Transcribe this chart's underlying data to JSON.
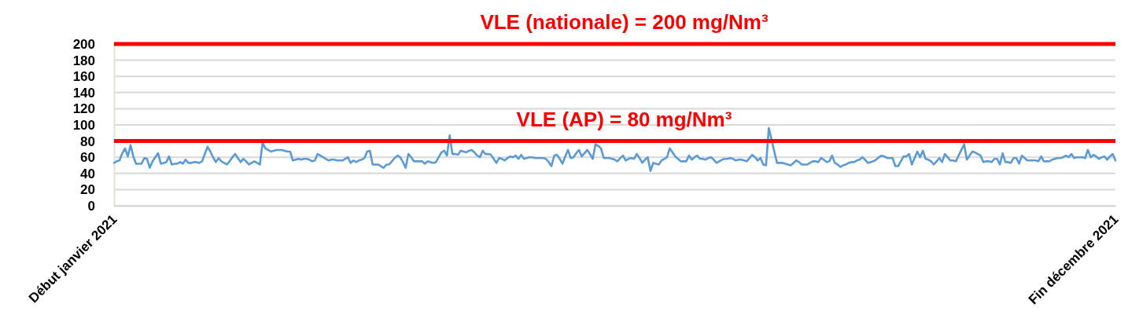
{
  "chart_data": {
    "type": "line",
    "categories": [
      "Début janvier 2021",
      null,
      null,
      null,
      null,
      null,
      null,
      null,
      null,
      null,
      null,
      null,
      null,
      null,
      null,
      null,
      null,
      null,
      null,
      null,
      null,
      null,
      null,
      null,
      null,
      null,
      null,
      null,
      null,
      null,
      null,
      null,
      null,
      null,
      null,
      null,
      null,
      null,
      null,
      null,
      null,
      null,
      null,
      null,
      null,
      null,
      null,
      null,
      null,
      null,
      null,
      null,
      null,
      null,
      null,
      null,
      null,
      null,
      null,
      null,
      null,
      null,
      null,
      null,
      null,
      null,
      null,
      null,
      null,
      null,
      null,
      null,
      null,
      null,
      null,
      null,
      null,
      null,
      null,
      null,
      null,
      null,
      null,
      null,
      null,
      null,
      null,
      null,
      null,
      null,
      null,
      null,
      null,
      null,
      null,
      null,
      null,
      null,
      null,
      null,
      null,
      null,
      null,
      null,
      null,
      null,
      null,
      null,
      null,
      null,
      null,
      null,
      null,
      null,
      null,
      null,
      null,
      null,
      null,
      null,
      null,
      null,
      null,
      null,
      null,
      null,
      null,
      null,
      null,
      null,
      null,
      null,
      null,
      null,
      null,
      null,
      null,
      null,
      null,
      null,
      null,
      null,
      null,
      null,
      null,
      null,
      null,
      null,
      null,
      null,
      null,
      null,
      null,
      null,
      null,
      null,
      null,
      null,
      null,
      null,
      null,
      null,
      null,
      null,
      null,
      null,
      null,
      null,
      null,
      null,
      null,
      null,
      null,
      null,
      null,
      null,
      null,
      null,
      null,
      null,
      null,
      null,
      null,
      null,
      null,
      null,
      null,
      null,
      null,
      null,
      null,
      null,
      null,
      null,
      null,
      null,
      null,
      null,
      null,
      null,
      null,
      null,
      null,
      null,
      null,
      null,
      null,
      null,
      null,
      null,
      null,
      null,
      null,
      null,
      null,
      null,
      null,
      null,
      null,
      null,
      null,
      null,
      null,
      null,
      null,
      null,
      null,
      null,
      null,
      null,
      null,
      null,
      null,
      null,
      null,
      null,
      null,
      null,
      null,
      null,
      null,
      null,
      null,
      null,
      null,
      null,
      null,
      null,
      null,
      null,
      null,
      null,
      null,
      null,
      null,
      null,
      null,
      null,
      null,
      null,
      null,
      null,
      null,
      null,
      null,
      null,
      null,
      null,
      null,
      null,
      null,
      null,
      null,
      null,
      null,
      null,
      null,
      null,
      null,
      null,
      null,
      null,
      null,
      null,
      null,
      null,
      null,
      null,
      null,
      null,
      null,
      null,
      null,
      null,
      null,
      null,
      null,
      null,
      null,
      null,
      null,
      null,
      null,
      null,
      null,
      null,
      null,
      null,
      null,
      null,
      null,
      null,
      null,
      null,
      null,
      null,
      null,
      null,
      null,
      null,
      null,
      null,
      null,
      null,
      null,
      null,
      null,
      null,
      null,
      null,
      null,
      null,
      null,
      null,
      null,
      null,
      null,
      null,
      null,
      null,
      null,
      null,
      null,
      null,
      null,
      null,
      null,
      null,
      null,
      null,
      null,
      null,
      null,
      null,
      null,
      null,
      null,
      null,
      null,
      null,
      null,
      null,
      null,
      null,
      "Fin décembre 2021"
    ],
    "series": [
      {
        "color": "#5b9bd5",
        "values": [
          53,
          55,
          56,
          65,
          71,
          61,
          75,
          61,
          52,
          52,
          52,
          59,
          58,
          47,
          55,
          60,
          65,
          52,
          53,
          54,
          61,
          51,
          52,
          52,
          54,
          52,
          57,
          53,
          53,
          54,
          54,
          53,
          55,
          64,
          73,
          67,
          60,
          54,
          59,
          55,
          53,
          51,
          55,
          60,
          64,
          59,
          54,
          58,
          55,
          51,
          53,
          55,
          53,
          51,
          78,
          71,
          69,
          67,
          68,
          69,
          69,
          69,
          68,
          67,
          67,
          56,
          57,
          58,
          57,
          58,
          58,
          57,
          55,
          56,
          64,
          62,
          60,
          58,
          56,
          57,
          57,
          56,
          56,
          56,
          58,
          60,
          53,
          56,
          54,
          56,
          57,
          59,
          67,
          68,
          51,
          51,
          51,
          49,
          47,
          51,
          51,
          55,
          59,
          62,
          60,
          54,
          47,
          64,
          60,
          55,
          55,
          55,
          55,
          52,
          55,
          54,
          53,
          54,
          60,
          66,
          68,
          62,
          87,
          64,
          64,
          63,
          68,
          67,
          66,
          68,
          69,
          66,
          62,
          60,
          68,
          64,
          64,
          63,
          58,
          53,
          59,
          58,
          56,
          59,
          61,
          60,
          62,
          58,
          63,
          58,
          59,
          60,
          60,
          59,
          59,
          59,
          59,
          58,
          54,
          49,
          62,
          63,
          58,
          52,
          61,
          69,
          59,
          60,
          65,
          69,
          61,
          65,
          69,
          64,
          58,
          76,
          74,
          71,
          59,
          59,
          59,
          58,
          57,
          55,
          59,
          62,
          56,
          58,
          59,
          58,
          64,
          59,
          53,
          57,
          60,
          43,
          53,
          52,
          51,
          56,
          58,
          60,
          71,
          66,
          61,
          58,
          55,
          55,
          55,
          62,
          57,
          60,
          62,
          58,
          58,
          57,
          59,
          60,
          57,
          53,
          55,
          57,
          58,
          58,
          59,
          58,
          56,
          57,
          57,
          56,
          55,
          59,
          63,
          60,
          56,
          59,
          51,
          50,
          96,
          82,
          67,
          53,
          53,
          53,
          52,
          51,
          50,
          53,
          56,
          54,
          51,
          51,
          51,
          53,
          55,
          55,
          54,
          59,
          57,
          54,
          55,
          62,
          53,
          51,
          48,
          50,
          51,
          53,
          54,
          54,
          56,
          57,
          60,
          57,
          53,
          54,
          55,
          57,
          60,
          62,
          61,
          59,
          59,
          59,
          49,
          49,
          55,
          61,
          61,
          64,
          51,
          59,
          67,
          60,
          68,
          58,
          57,
          55,
          51,
          55,
          59,
          54,
          64,
          60,
          56,
          56,
          55,
          62,
          69,
          76,
          57,
          62,
          67,
          66,
          64,
          62,
          54,
          55,
          55,
          54,
          58,
          58,
          51,
          65,
          54,
          54,
          53,
          59,
          59,
          52,
          62,
          59,
          56,
          56,
          56,
          56,
          55,
          61,
          55,
          55,
          55,
          57,
          58,
          59,
          59,
          60,
          62,
          60,
          64,
          59,
          60,
          60,
          60,
          59,
          69,
          60,
          63,
          61,
          58,
          60,
          61,
          57,
          61,
          64,
          56
        ]
      }
    ],
    "ylim": [
      0,
      200
    ],
    "yticks": [
      0,
      20,
      40,
      60,
      80,
      100,
      120,
      140,
      160,
      180,
      200
    ],
    "grid": "y",
    "ref_lines": [
      {
        "axis": "y",
        "value": 200,
        "label": "VLE (nationale) = 200 mg/Nm³",
        "color": "#ff0000"
      },
      {
        "axis": "y",
        "value": 80,
        "label": "VLE (AP) = 80 mg/Nm³",
        "color": "#ff0000"
      }
    ]
  }
}
